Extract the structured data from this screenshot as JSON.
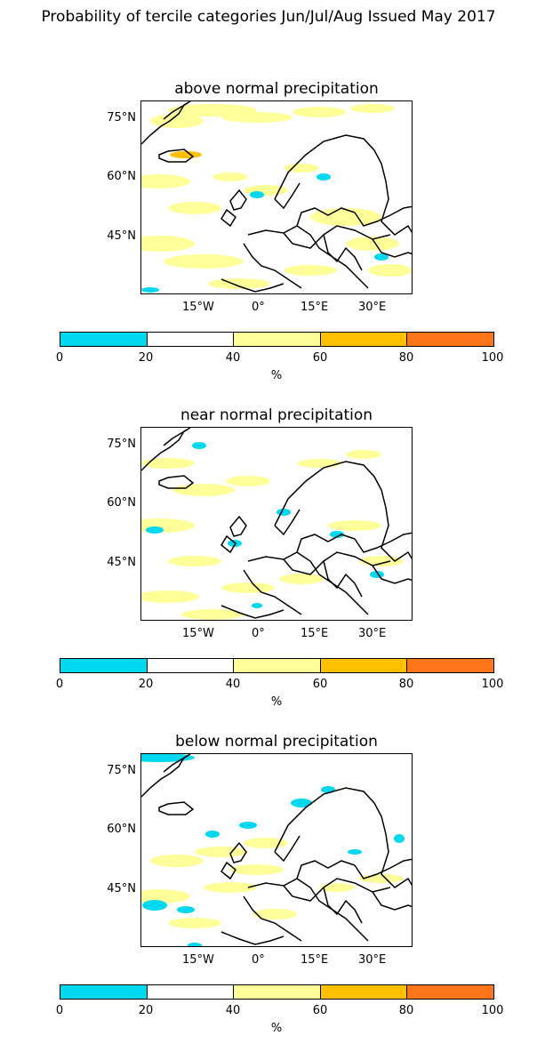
{
  "suptitle": "Probability of tercile categories Jun/Jul/Aug Issued May 2017",
  "panels": [
    {
      "title": "above normal precipitation"
    },
    {
      "title": "near normal precipitation"
    },
    {
      "title": "below normal precipitation"
    }
  ],
  "axes": {
    "lat_ticks": [
      "75°N",
      "60°N",
      "45°N"
    ],
    "lon_ticks": [
      "15°W",
      "0°",
      "15°E",
      "30°E"
    ]
  },
  "colorbar": {
    "tick_labels": [
      "0",
      "20",
      "40",
      "60",
      "80",
      "100"
    ],
    "unit": "%",
    "colors": [
      "#00d8f0",
      "#ffffff",
      "#ffff99",
      "#ffc000",
      "#ff7519"
    ]
  }
}
